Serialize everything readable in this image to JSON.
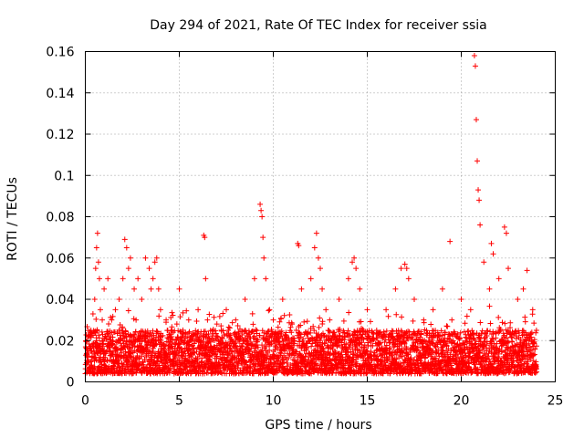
{
  "chart_data": {
    "type": "scatter",
    "title": "Day 294 of 2021, Rate Of TEC Index for receiver ssia",
    "xlabel": "GPS time / hours",
    "ylabel": "ROTI / TECUs",
    "xlim": [
      0,
      25
    ],
    "ylim": [
      0,
      0.16
    ],
    "x_ticks": [
      0,
      5,
      10,
      15,
      20,
      25
    ],
    "x_tick_labels": [
      "0",
      "5",
      "10",
      "15",
      "20",
      "25"
    ],
    "y_ticks": [
      0,
      0.02,
      0.04,
      0.06,
      0.08,
      0.1,
      0.12,
      0.14,
      0.16
    ],
    "y_tick_labels": [
      "0",
      "0.02",
      "0.04",
      "0.06",
      "0.08",
      "0.1",
      "0.12",
      "0.14",
      "0.16"
    ],
    "grid": true,
    "marker": "plus",
    "color": "#ff0000",
    "series": [
      {
        "x": [
          0.1,
          0.3,
          0.5,
          0.55,
          0.6,
          0.65,
          0.7,
          0.75,
          0.8,
          0.9,
          1.0,
          1.2,
          1.4,
          1.6,
          1.8,
          2.0,
          2.1,
          2.2,
          2.3,
          2.4,
          2.6,
          2.7,
          2.8,
          3.0,
          3.2,
          3.4,
          3.5,
          3.6,
          3.7,
          3.8,
          3.9,
          4.0,
          4.3,
          4.6,
          5.0,
          5.5,
          6.0,
          6.3,
          6.35,
          6.4,
          6.5,
          7.0,
          7.5,
          8.0,
          8.5,
          9.0,
          9.3,
          9.35,
          9.4,
          9.45,
          9.5,
          9.6,
          9.8,
          10.0,
          10.5,
          11.0,
          11.3,
          11.35,
          11.5,
          12.0,
          12.2,
          12.3,
          12.4,
          12.5,
          12.6,
          12.8,
          13.0,
          13.5,
          14.0,
          14.2,
          14.3,
          14.4,
          14.6,
          15.0,
          15.5,
          16.0,
          16.5,
          16.8,
          17.0,
          17.1,
          17.2,
          17.5,
          18.0,
          18.5,
          19.0,
          19.4,
          19.5,
          20.0,
          20.5,
          20.7,
          20.75,
          20.8,
          20.85,
          20.9,
          20.95,
          21.0,
          21.2,
          21.5,
          21.6,
          21.7,
          22.0,
          22.3,
          22.4,
          22.5,
          23.0,
          23.3,
          23.5,
          23.8,
          24.0
        ],
        "y": [
          0.02,
          0.025,
          0.04,
          0.055,
          0.065,
          0.072,
          0.058,
          0.05,
          0.035,
          0.03,
          0.045,
          0.05,
          0.03,
          0.035,
          0.04,
          0.05,
          0.069,
          0.065,
          0.055,
          0.06,
          0.045,
          0.03,
          0.05,
          0.04,
          0.06,
          0.055,
          0.045,
          0.05,
          0.058,
          0.06,
          0.045,
          0.035,
          0.03,
          0.025,
          0.045,
          0.03,
          0.035,
          0.071,
          0.07,
          0.05,
          0.03,
          0.028,
          0.035,
          0.03,
          0.04,
          0.05,
          0.086,
          0.083,
          0.08,
          0.07,
          0.06,
          0.05,
          0.035,
          0.03,
          0.04,
          0.028,
          0.067,
          0.066,
          0.045,
          0.05,
          0.065,
          0.072,
          0.06,
          0.055,
          0.045,
          0.035,
          0.03,
          0.04,
          0.05,
          0.058,
          0.06,
          0.055,
          0.045,
          0.035,
          0.025,
          0.035,
          0.045,
          0.055,
          0.057,
          0.055,
          0.05,
          0.04,
          0.03,
          0.035,
          0.045,
          0.068,
          0.03,
          0.04,
          0.035,
          0.158,
          0.153,
          0.127,
          0.107,
          0.093,
          0.088,
          0.076,
          0.058,
          0.045,
          0.067,
          0.062,
          0.05,
          0.075,
          0.072,
          0.055,
          0.04,
          0.045,
          0.054,
          0.035,
          0.025
        ]
      }
    ],
    "baseline_band": {
      "x_range": [
        0,
        24
      ],
      "y_min": 0.004,
      "y_max": 0.025
    }
  }
}
